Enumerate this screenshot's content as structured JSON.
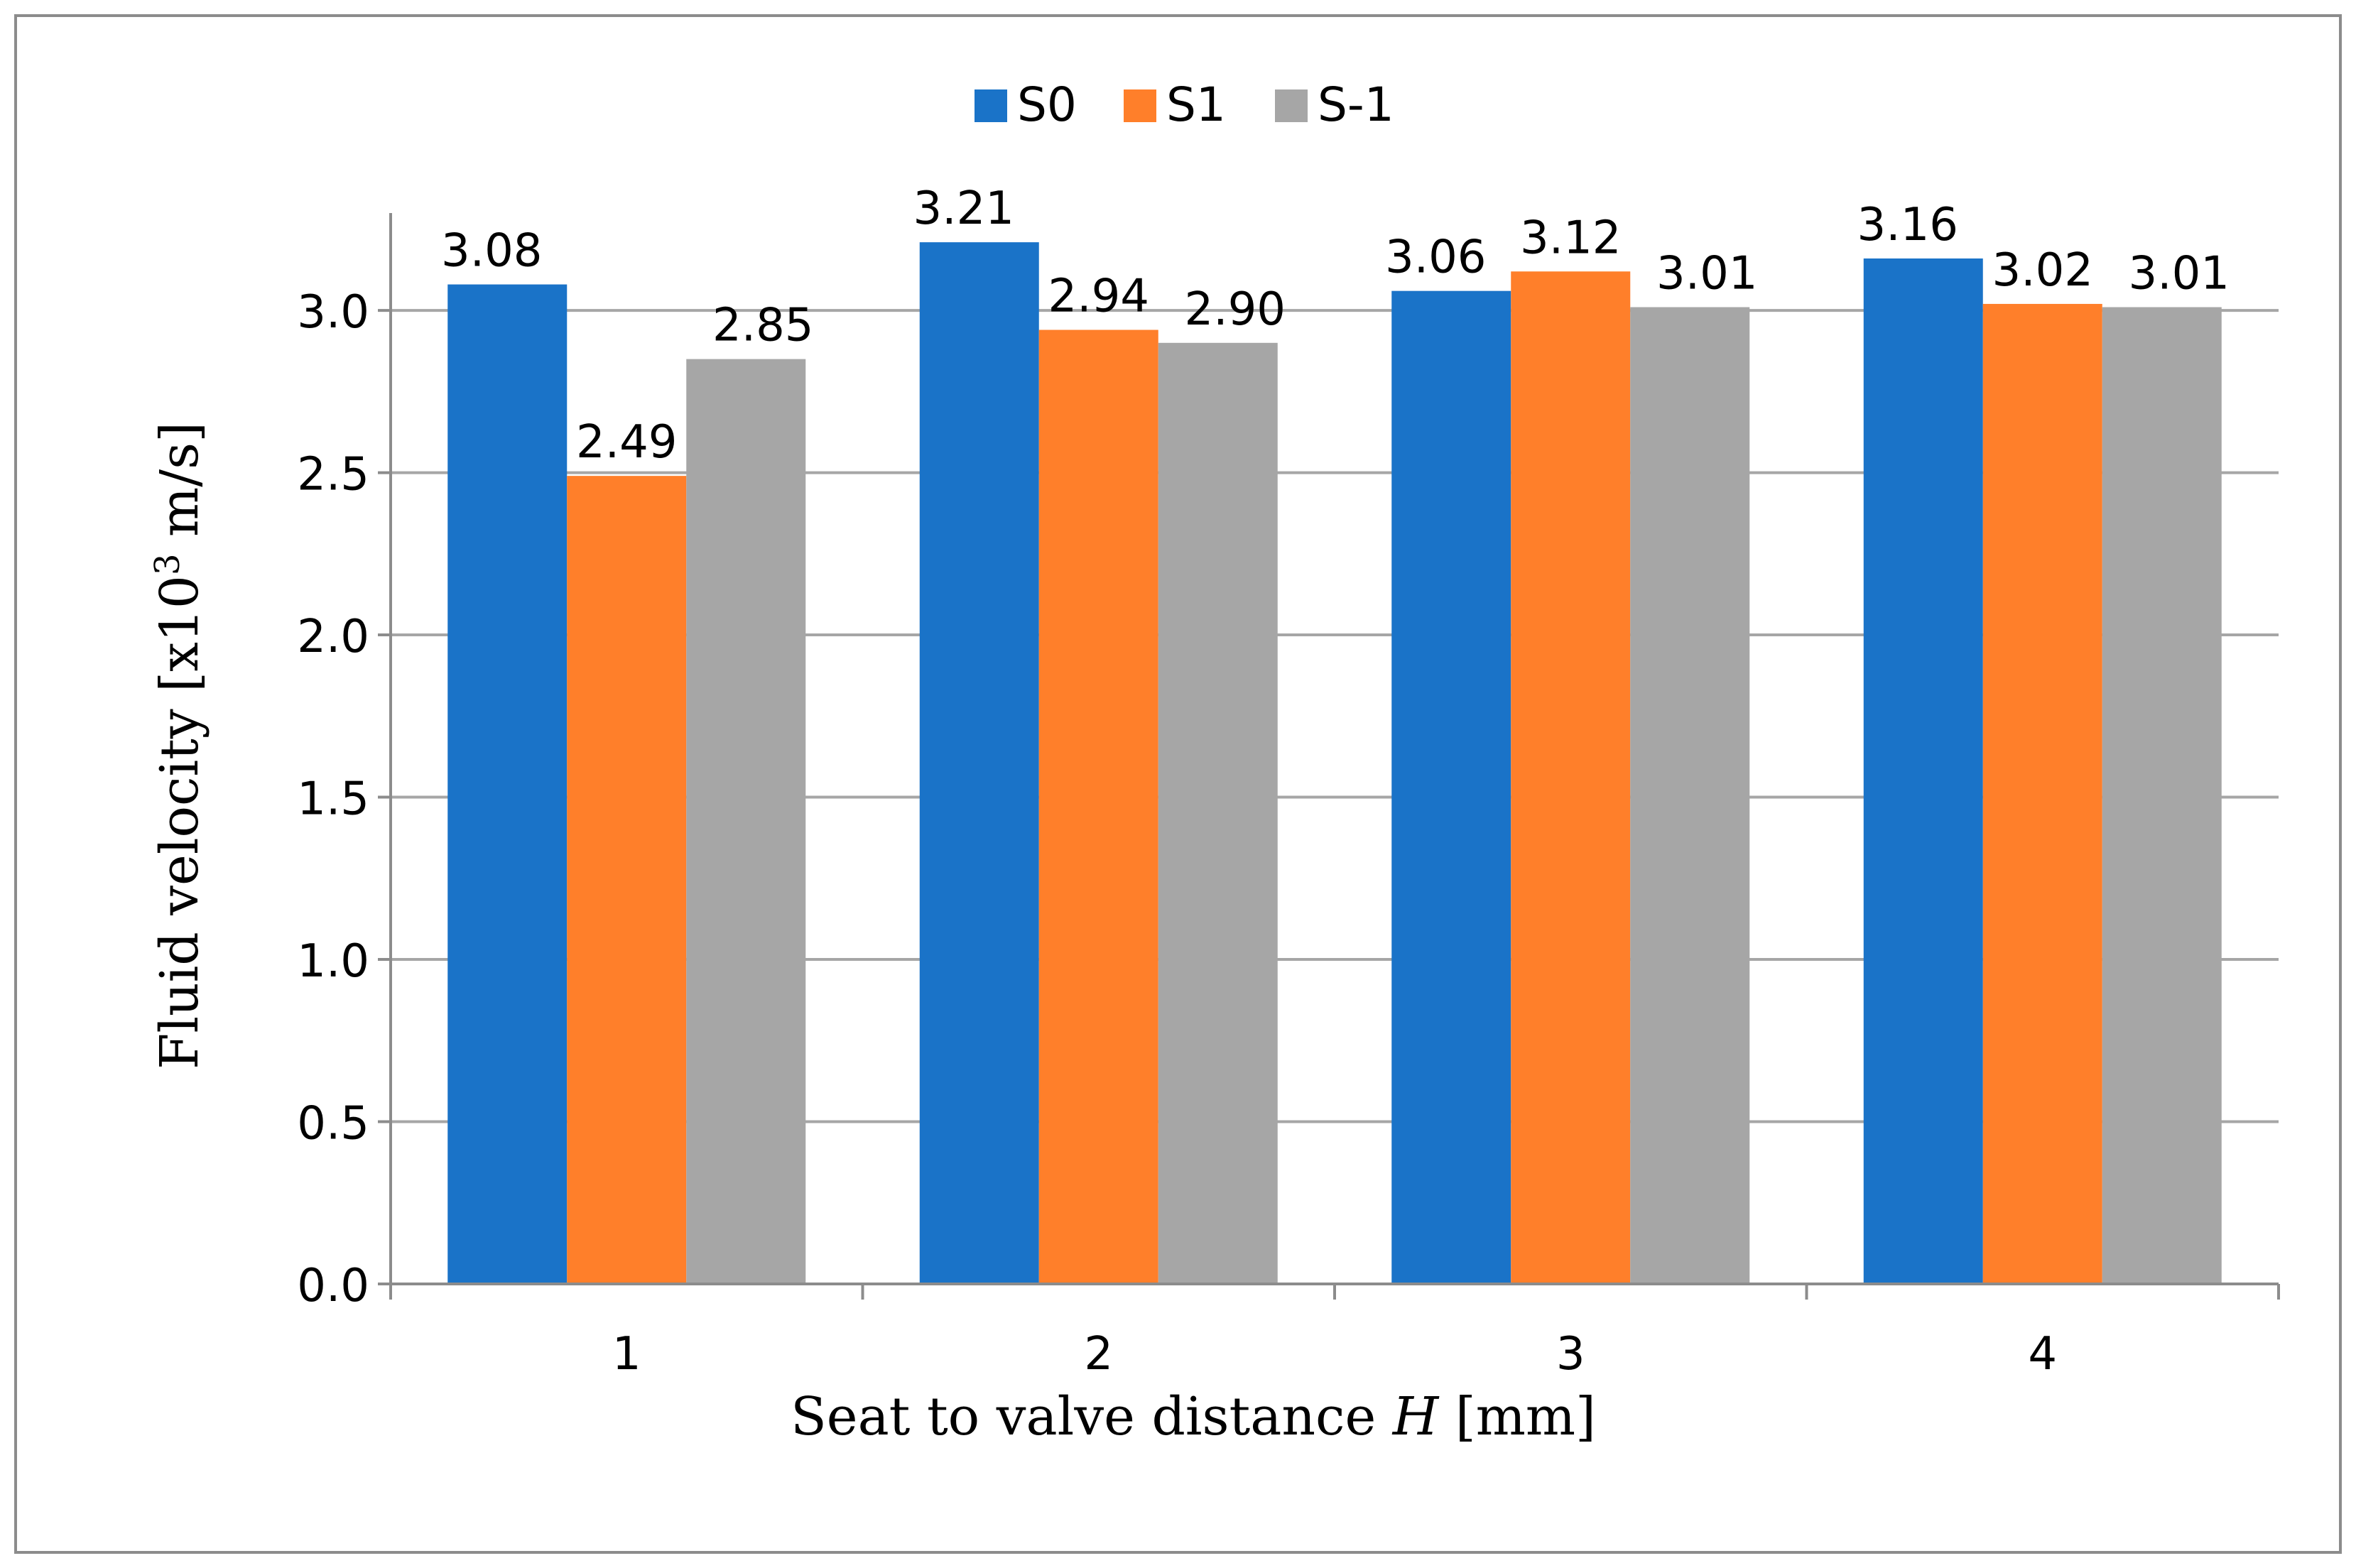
{
  "chart_data": {
    "type": "bar",
    "title": "",
    "categories": [
      "1",
      "2",
      "3",
      "4"
    ],
    "series": [
      {
        "name": "S0",
        "color": "#1a73c8",
        "values": [
          3.08,
          3.21,
          3.06,
          3.16
        ],
        "labels": [
          "3.08",
          "3.21",
          "3.06",
          "3.16"
        ]
      },
      {
        "name": "S1",
        "color": "#ff7f2a",
        "values": [
          2.49,
          2.94,
          3.12,
          3.02
        ],
        "labels": [
          "2.49",
          "2.94",
          "3.12",
          "3.02"
        ]
      },
      {
        "name": "S-1",
        "color": "#a6a6a6",
        "values": [
          2.85,
          2.9,
          3.01,
          3.01
        ],
        "labels": [
          "2.85",
          "2.90",
          "3.01",
          "3.01"
        ]
      }
    ],
    "xlabel_prefix": "Seat to valve distance ",
    "xlabel_var": "H",
    "xlabel_suffix": " [mm]",
    "ylabel_prefix": "Fluid velocity [x10",
    "ylabel_sup": "3",
    "ylabel_suffix": " m/s]",
    "ylim": [
      0,
      3.3
    ],
    "yticks": [
      0,
      0.5,
      1.0,
      1.5,
      2.0,
      2.5,
      3.0
    ],
    "ytick_labels": [
      "0.0",
      "0.5",
      "1.0",
      "1.5",
      "2.0",
      "2.5",
      "3.0"
    ],
    "grid": true,
    "legend_position": "top-center",
    "gridline_color": "#a6a6a6",
    "axis_color": "#8c8c8c"
  }
}
